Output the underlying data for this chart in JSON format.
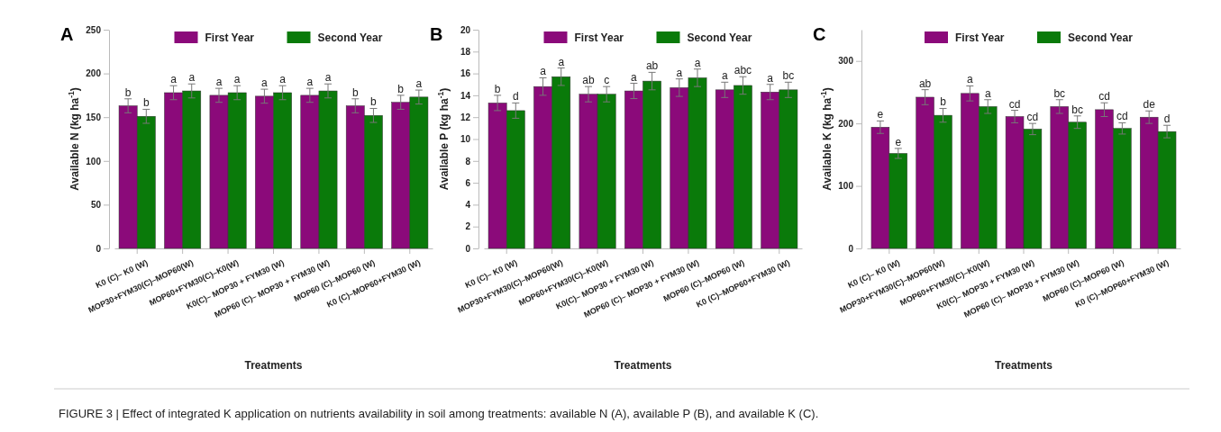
{
  "chart_data": [
    {
      "type": "bar",
      "title": "A",
      "xlabel": "Treatments",
      "ylabel": "Available N (kg ha$^{-1}$)",
      "categories": [
        "K0 (C)– K0 (W)",
        "MOP30+FYM30(C)–MOP60(W)",
        "MOP60+FYM30(C)–K0(W)",
        "K0(C)– MOP30 + FYM30 (W)",
        "MOP60 (C)– MOP30 + FYM30 (W)",
        "MOP60 (C)–MOP60 (W)",
        "K0 (C)–MOP60+FYM30 (W)"
      ],
      "series": [
        {
          "name": "First Year",
          "color": "#8b0a7a",
          "values": [
            163,
            178,
            175,
            174,
            175,
            163,
            167
          ],
          "errors": [
            8,
            8,
            8,
            8,
            8,
            8,
            8
          ],
          "value_labels": [
            "b",
            "a",
            "a",
            "a",
            "a",
            "b",
            "b"
          ]
        },
        {
          "name": "Second Year",
          "color": "#0a7a0a",
          "values": [
            151,
            180,
            178,
            178,
            180,
            152,
            173
          ],
          "errors": [
            8,
            8,
            8,
            8,
            8,
            8,
            8
          ],
          "value_labels": [
            "b",
            "a",
            "a",
            "a",
            "a",
            "b",
            "a"
          ]
        }
      ],
      "ylim": [
        0,
        250
      ],
      "yticks": [
        0,
        50,
        100,
        150,
        200,
        250
      ],
      "legend": "top"
    },
    {
      "type": "bar",
      "title": "B",
      "xlabel": "Treatments",
      "ylabel": "Available P (kg ha$^{-1}$)",
      "categories": [
        "K0 (C)– K0 (W)",
        "MOP30+FYM30(C)–MOP60(W)",
        "MOP60+FYM30(C)–K0(W)",
        "K0(C)– MOP30 + FYM30 (W)",
        "MOP60 (C)– MOP30 + FYM30 (W)",
        "MOP60 (C)–MOP60 (W)",
        "K0 (C)–MOP60+FYM30 (W)"
      ],
      "series": [
        {
          "name": "First Year",
          "color": "#8b0a7a",
          "values": [
            13.3,
            14.8,
            14.1,
            14.4,
            14.7,
            14.5,
            14.3
          ],
          "errors": [
            0.7,
            0.8,
            0.7,
            0.7,
            0.8,
            0.7,
            0.7
          ],
          "value_labels": [
            "b",
            "a",
            "ab",
            "a",
            "a",
            "a",
            "a"
          ]
        },
        {
          "name": "Second Year",
          "color": "#0a7a0a",
          "values": [
            12.6,
            15.7,
            14.1,
            15.3,
            15.6,
            14.9,
            14.5
          ],
          "errors": [
            0.7,
            0.8,
            0.7,
            0.8,
            0.8,
            0.8,
            0.7
          ],
          "value_labels": [
            "d",
            "a",
            "c",
            "ab",
            "a",
            "abc",
            "bc"
          ]
        }
      ],
      "ylim": [
        0,
        20
      ],
      "yticks": [
        0,
        2,
        4,
        6,
        8,
        10,
        12,
        14,
        16,
        18,
        20
      ],
      "legend": "top"
    },
    {
      "type": "bar",
      "title": "C",
      "xlabel": "Treatments",
      "ylabel": "Available K (kg ha$^{-1}$)",
      "categories": [
        "K0 (C)– K0 (W)",
        "MOP30+FYM30(C)–MOP60(W)",
        "MOP60+FYM30(C)–K0(W)",
        "K0(C)– MOP30 + FYM30 (W)",
        "MOP60 (C)– MOP30 + FYM30 (W)",
        "MOP60 (C)–MOP60 (W)",
        "K0 (C)–MOP60+FYM30 (W)"
      ],
      "series": [
        {
          "name": "First Year",
          "color": "#8b0a7a",
          "values": [
            194,
            242,
            248,
            211,
            227,
            222,
            210
          ],
          "errors": [
            10,
            12,
            12,
            10,
            11,
            11,
            10
          ],
          "value_labels": [
            "e",
            "ab",
            "a",
            "cd",
            "bc",
            "cd",
            "de"
          ]
        },
        {
          "name": "Second Year",
          "color": "#0a7a0a",
          "values": [
            152,
            213,
            227,
            191,
            202,
            192,
            187
          ],
          "errors": [
            8,
            11,
            11,
            9,
            10,
            9,
            10
          ],
          "value_labels": [
            "e",
            "b",
            "a",
            "cd",
            "bc",
            "cd",
            "d"
          ]
        }
      ],
      "ylim": [
        0,
        350
      ],
      "yticks": [
        0,
        100,
        200,
        300
      ],
      "legend": "top",
      "annotations": [
        "FIGURE 3 | Effect of integrated K application on nutrients availability in soil among treatments: available N (A), available P (B), and available K (C)."
      ]
    }
  ]
}
